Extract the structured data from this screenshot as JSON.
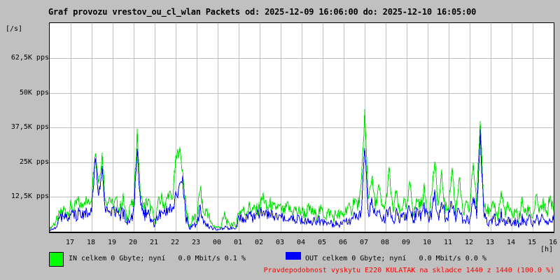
{
  "page": {
    "background": "#c0c0c0"
  },
  "title": "Graf provozu vrestov_ou_cl_wlan Packets od: 2025-12-09 16:06:00 do: 2025-12-10 16:05:00",
  "y_axis": {
    "unit_label": "[/s]",
    "tick_labels": [
      "62,5K pps",
      "50K pps",
      "37,5K pps",
      "25K pps",
      "12,5K pps"
    ],
    "tick_values_pps": [
      62500,
      50000,
      37500,
      25000,
      12500
    ]
  },
  "x_axis": {
    "hour_labels": [
      "17",
      "18",
      "19",
      "20",
      "21",
      "22",
      "23",
      "00",
      "01",
      "02",
      "03",
      "04",
      "05",
      "06",
      "07",
      "08",
      "09",
      "10",
      "11",
      "12",
      "13",
      "14",
      "15",
      "16"
    ],
    "unit_label": "[h]"
  },
  "legend": {
    "in": {
      "label": "IN celkem 0 Gbyte; nyní   0.0 Mbit/s 0.1 %",
      "color": "#00ff00"
    },
    "out": {
      "label": "OUT celkem 0 Gbyte; nyní   0.0 Mbit/s 0.0 %",
      "color": "#0000ff"
    }
  },
  "footer_note": {
    "text": "Pravdepodobnost vyskytu E220 KULATAK na skladce 1440 z 1440 (100.0 %)",
    "color": "#ff0000"
  },
  "chart_data": {
    "type": "line",
    "title": "Graf provozu vrestov_ou_cl_wlan Packets",
    "time_start": "2025-12-09 16:06:00",
    "time_end": "2025-12-10 16:05:00",
    "sample_interval_minutes": 10,
    "ylabel": "pps",
    "ylim": [
      0,
      75000
    ],
    "grid": true,
    "gridline_step_pps": 12500,
    "legend_position": "bottom",
    "series": [
      {
        "name": "IN",
        "color": "#00dd00",
        "values_pps": [
          1000,
          2500,
          4000,
          6000,
          8000,
          7000,
          9000,
          8000,
          11000,
          9000,
          12000,
          10000,
          13000,
          30000,
          18000,
          28000,
          10000,
          13000,
          9000,
          11000,
          8000,
          12000,
          4000,
          10000,
          9000,
          36000,
          12000,
          9000,
          11000,
          8000,
          3500,
          10000,
          12000,
          9000,
          14000,
          11000,
          25000,
          30000,
          22000,
          8000,
          1500,
          5000,
          4000,
          16000,
          6000,
          8000,
          3000,
          2000,
          1500,
          2000,
          6000,
          2500,
          3000,
          2000,
          7000,
          8000,
          7000,
          9000,
          8000,
          7500,
          9000,
          13000,
          8000,
          10000,
          8000,
          9000,
          8000,
          7000,
          9000,
          7000,
          8000,
          7000,
          7500,
          6500,
          8000,
          7000,
          6000,
          7500,
          7000,
          6000,
          7000,
          5000,
          6500,
          5500,
          6000,
          9000,
          7000,
          12000,
          9000,
          15000,
          43000,
          12000,
          20000,
          9000,
          16000,
          8000,
          10000,
          22000,
          7000,
          14000,
          6000,
          11000,
          8000,
          18000,
          6000,
          12000,
          9000,
          15000,
          7000,
          12000,
          25000,
          9000,
          20000,
          8000,
          10000,
          23000,
          7000,
          20000,
          6000,
          9000,
          8000,
          25000,
          10000,
          40000,
          12000,
          8000,
          6000,
          10000,
          5000,
          14000,
          7000,
          9000,
          5000,
          8000,
          4000,
          11000,
          6000,
          9000,
          5000,
          12000,
          7000,
          10000,
          6000,
          13000,
          7000
        ]
      },
      {
        "name": "OUT",
        "color": "#0000ff",
        "values_pps": [
          300,
          1000,
          2000,
          4500,
          5500,
          5000,
          6000,
          5500,
          7000,
          6000,
          7500,
          6500,
          8000,
          26000,
          12000,
          22000,
          7000,
          6000,
          6500,
          7000,
          5500,
          7000,
          3000,
          6000,
          6500,
          28000,
          8000,
          6000,
          7000,
          5500,
          2500,
          6000,
          7000,
          6000,
          8000,
          7000,
          12000,
          15000,
          18000,
          5000,
          1000,
          3000,
          2000,
          8000,
          3000,
          2500,
          1500,
          1000,
          800,
          1000,
          1500,
          1200,
          1500,
          1000,
          4500,
          5500,
          5000,
          6000,
          5500,
          5000,
          6000,
          7000,
          5500,
          6000,
          5000,
          6000,
          5500,
          4500,
          5500,
          4500,
          5000,
          4500,
          4000,
          3500,
          4500,
          4000,
          3500,
          4000,
          3500,
          3000,
          3500,
          2500,
          3000,
          2500,
          3000,
          4000,
          3500,
          5000,
          4500,
          6000,
          32000,
          7000,
          10000,
          5000,
          8000,
          4500,
          6000,
          9000,
          4000,
          7000,
          3500,
          6000,
          5000,
          9000,
          4000,
          7000,
          5000,
          8000,
          4500,
          6000,
          14000,
          5000,
          12000,
          4500,
          6000,
          10000,
          4000,
          8000,
          3500,
          5000,
          4500,
          12000,
          6000,
          35000,
          7000,
          4000,
          3000,
          5000,
          2500,
          6000,
          3500,
          4500,
          2500,
          4000,
          2000,
          5000,
          3000,
          4500,
          2500,
          5000,
          3500,
          5000,
          3000,
          6000,
          4000
        ]
      }
    ]
  }
}
